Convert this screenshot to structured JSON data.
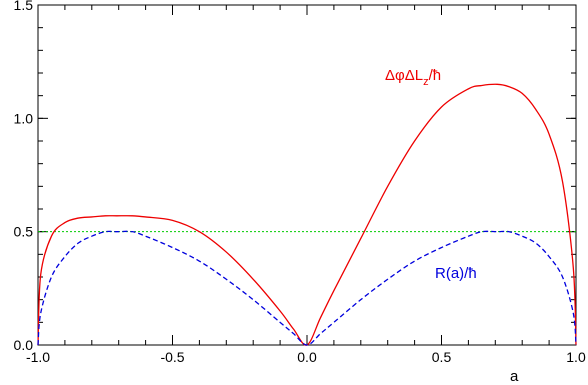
{
  "chart_data": {
    "type": "line",
    "title": "",
    "xlabel": "a",
    "ylabel": "",
    "xlim": [
      -1.0,
      1.0
    ],
    "ylim": [
      0.0,
      1.5
    ],
    "grid": false,
    "x_ticks": [
      "-1.0",
      "-0.5",
      "0.0",
      "0.5",
      "1.0"
    ],
    "y_ticks": [
      "0.0",
      "0.5",
      "1.0",
      "1.5"
    ],
    "x": [
      -1.0,
      -0.99,
      -0.95,
      -0.9,
      -0.85,
      -0.8,
      -0.75,
      -0.7071,
      -0.65,
      -0.6,
      -0.5,
      -0.4,
      -0.3,
      -0.2,
      -0.1,
      -0.05,
      0.0,
      0.05,
      0.1,
      0.2,
      0.3,
      0.4,
      0.5,
      0.6,
      0.65,
      0.7071,
      0.75,
      0.8,
      0.85,
      0.9,
      0.95,
      0.99,
      1.0
    ],
    "series": [
      {
        "name": "ΔφΔL_z/ħ",
        "color": "#ee0000",
        "style": "solid",
        "values": [
          0.0,
          0.31,
          0.48,
          0.54,
          0.56,
          0.565,
          0.57,
          0.57,
          0.57,
          0.565,
          0.55,
          0.5,
          0.41,
          0.29,
          0.15,
          0.07,
          0.0,
          0.12,
          0.24,
          0.47,
          0.7,
          0.9,
          1.05,
          1.13,
          1.145,
          1.15,
          1.14,
          1.11,
          1.04,
          0.93,
          0.72,
          0.34,
          0.0
        ]
      },
      {
        "name": "R(a)/ħ",
        "color": "#0000dd",
        "style": "dashed",
        "values": [
          0.0,
          0.14,
          0.3,
          0.39,
          0.45,
          0.48,
          0.5,
          0.5,
          0.5,
          0.48,
          0.43,
          0.37,
          0.29,
          0.2,
          0.1,
          0.05,
          0.0,
          0.05,
          0.1,
          0.2,
          0.29,
          0.37,
          0.43,
          0.48,
          0.5,
          0.5,
          0.5,
          0.48,
          0.45,
          0.39,
          0.3,
          0.14,
          0.0
        ]
      }
    ],
    "reference_line": {
      "y": 0.5,
      "color": "#00cc00",
      "style": "dotted"
    },
    "labels": {
      "red_prefix": "ΔφΔL",
      "red_sub": "z",
      "red_suffix": "/ħ",
      "blue": "R(a)/ħ"
    }
  }
}
